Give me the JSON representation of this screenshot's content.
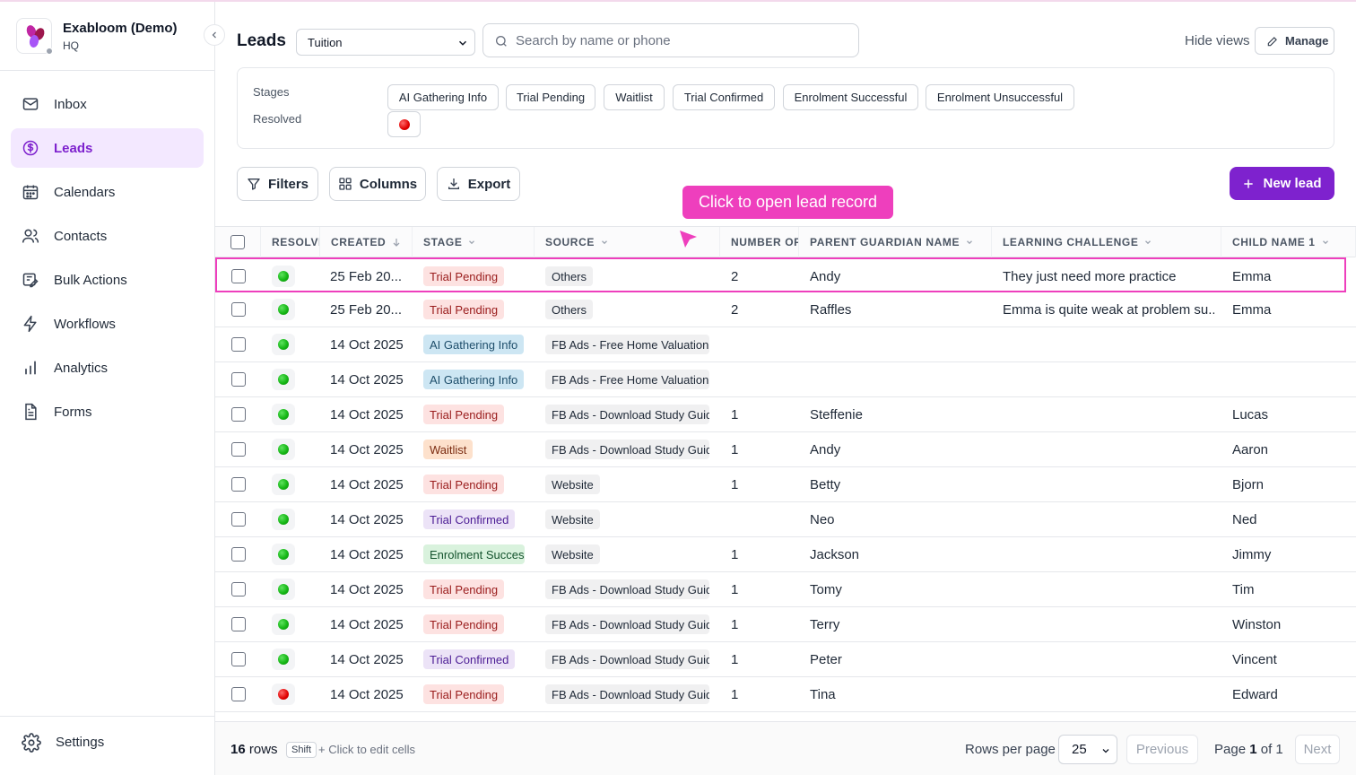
{
  "brand": {
    "name": "Exabloom (Demo)",
    "sub": "HQ"
  },
  "sidebar": {
    "items": [
      {
        "label": "Inbox",
        "icon": "mail-icon"
      },
      {
        "label": "Leads",
        "icon": "dollar-circle-icon",
        "active": true
      },
      {
        "label": "Calendars",
        "icon": "calendar-icon"
      },
      {
        "label": "Contacts",
        "icon": "users-icon"
      },
      {
        "label": "Bulk Actions",
        "icon": "bulk-actions-icon"
      },
      {
        "label": "Workflows",
        "icon": "bolt-icon"
      },
      {
        "label": "Analytics",
        "icon": "bar-chart-icon"
      },
      {
        "label": "Forms",
        "icon": "document-icon"
      }
    ],
    "settings_label": "Settings"
  },
  "header": {
    "title": "Leads",
    "pipeline_value": "Tuition",
    "search_placeholder": "Search by name or phone",
    "hide_views": "Hide views",
    "manage": "Manage"
  },
  "filters": {
    "stages_label": "Stages",
    "resolved_label": "Resolved",
    "stages": [
      "AI Gathering Info",
      "Trial Pending",
      "Waitlist",
      "Trial Confirmed",
      "Enrolment Successful",
      "Enrolment Unsuccessful"
    ]
  },
  "toolbar": {
    "filters": "Filters",
    "columns": "Columns",
    "export": "Export",
    "new_lead": "New lead"
  },
  "tooltip": "Click to open lead record",
  "table": {
    "headers": {
      "resolved": "RESOLVED",
      "created": "CREATED",
      "stage": "STAGE",
      "source": "SOURCE",
      "number": "NUMBER OF CHILDREN",
      "parent": "PARENT GUARDIAN NAME",
      "challenge": "LEARNING CHALLENGE",
      "child": "CHILD NAME 1"
    },
    "rows": [
      {
        "resolved": "green",
        "created": "25 Feb 20...",
        "stage": "Trial Pending",
        "stage_kind": "pending",
        "source": "Others",
        "number": "2",
        "parent": "Andy",
        "challenge": "They just need more practice",
        "child": "Emma"
      },
      {
        "resolved": "green",
        "created": "25 Feb 20...",
        "stage": "Trial Pending",
        "stage_kind": "pending",
        "source": "Others",
        "number": "2",
        "parent": "Raffles",
        "challenge": "Emma is quite weak at problem su...",
        "child": "Emma"
      },
      {
        "resolved": "green",
        "created": "14 Oct 2025",
        "stage": "AI Gathering Info",
        "stage_kind": "ai",
        "source": "FB Ads - Free Home Valuation",
        "number": "",
        "parent": "",
        "challenge": "",
        "child": ""
      },
      {
        "resolved": "green",
        "created": "14 Oct 2025",
        "stage": "AI Gathering Info",
        "stage_kind": "ai",
        "source": "FB Ads - Free Home Valuation",
        "number": "",
        "parent": "",
        "challenge": "",
        "child": ""
      },
      {
        "resolved": "green",
        "created": "14 Oct 2025",
        "stage": "Trial Pending",
        "stage_kind": "pending",
        "source": "FB Ads - Download Study Guide",
        "number": "1",
        "parent": "Steffenie",
        "challenge": "",
        "child": "Lucas"
      },
      {
        "resolved": "green",
        "created": "14 Oct 2025",
        "stage": "Waitlist",
        "stage_kind": "wait",
        "source": "FB Ads - Download Study Guide",
        "number": "1",
        "parent": "Andy",
        "challenge": "",
        "child": "Aaron"
      },
      {
        "resolved": "green",
        "created": "14 Oct 2025",
        "stage": "Trial Pending",
        "stage_kind": "pending",
        "source": "Website",
        "number": "1",
        "parent": "Betty",
        "challenge": "",
        "child": "Bjorn"
      },
      {
        "resolved": "green",
        "created": "14 Oct 2025",
        "stage": "Trial Confirmed",
        "stage_kind": "confirmed",
        "source": "Website",
        "number": "",
        "parent": "Neo",
        "challenge": "",
        "child": "Ned"
      },
      {
        "resolved": "green",
        "created": "14 Oct 2025",
        "stage": "Enrolment Successful",
        "stage_kind": "success",
        "source": "Website",
        "number": "1",
        "parent": "Jackson",
        "challenge": "",
        "child": "Jimmy"
      },
      {
        "resolved": "green",
        "created": "14 Oct 2025",
        "stage": "Trial Pending",
        "stage_kind": "pending",
        "source": "FB Ads - Download Study Guide",
        "number": "1",
        "parent": "Tomy",
        "challenge": "",
        "child": "Tim"
      },
      {
        "resolved": "green",
        "created": "14 Oct 2025",
        "stage": "Trial Pending",
        "stage_kind": "pending",
        "source": "FB Ads - Download Study Guide",
        "number": "1",
        "parent": "Terry",
        "challenge": "",
        "child": "Winston"
      },
      {
        "resolved": "green",
        "created": "14 Oct 2025",
        "stage": "Trial Confirmed",
        "stage_kind": "confirmed",
        "source": "FB Ads - Download Study Guide",
        "number": "1",
        "parent": "Peter",
        "challenge": "",
        "child": "Vincent"
      },
      {
        "resolved": "red",
        "created": "14 Oct 2025",
        "stage": "Trial Pending",
        "stage_kind": "pending",
        "source": "FB Ads - Download Study Guide",
        "number": "1",
        "parent": "Tina",
        "challenge": "",
        "child": "Edward"
      }
    ]
  },
  "footer": {
    "rows_count": "16",
    "rows_word": "rows",
    "kbd": "Shift",
    "hint": "+ Click to edit cells",
    "rows_per_page_label": "Rows per page",
    "rows_per_page": "25",
    "previous": "Previous",
    "page_word": "Page",
    "page_current": "1",
    "page_of": "of 1",
    "next": "Next"
  },
  "colors": {
    "accent": "#7e22ce",
    "tooltip": "#ee3fbd",
    "active_nav_bg": "#f3e8ff"
  }
}
